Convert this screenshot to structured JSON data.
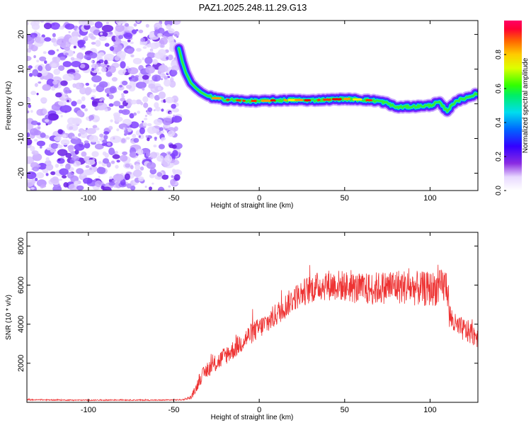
{
  "title": "PAZ1.2025.248.11.29.G13",
  "chart_data": [
    {
      "type": "heatmap",
      "title": "PAZ1.2025.248.11.29.G13",
      "xlabel": "Height of straight line (km)",
      "ylabel": "Frequency (Hz)",
      "xlim": [
        -136,
        128
      ],
      "ylim": [
        -25,
        24
      ],
      "x_ticks": [
        -100,
        -50,
        0,
        50,
        100
      ],
      "y_ticks": [
        -20,
        -10,
        0,
        10,
        20
      ],
      "x_tick_labels": [
        "-100",
        "-50",
        "0",
        "50",
        "100"
      ],
      "y_tick_labels": [
        "-20",
        "-10",
        "0",
        "10",
        "20"
      ],
      "noise_region_x": [
        -136,
        -47
      ],
      "ridge_line": {
        "x": [
          -47,
          -45,
          -43,
          -40,
          -37,
          -34,
          -30,
          -25,
          -20,
          -10,
          0,
          10,
          20,
          30,
          40,
          50,
          60,
          70,
          75,
          80,
          90,
          100,
          105,
          110,
          115,
          120,
          125,
          128
        ],
        "freq": [
          16,
          12,
          9,
          6,
          4.5,
          3.3,
          2.2,
          1.6,
          1.2,
          0.9,
          0.8,
          1.0,
          1.1,
          1.0,
          1.2,
          1.4,
          1.2,
          0.8,
          0.2,
          -1,
          -0.8,
          -0.5,
          0.5,
          -2,
          0.8,
          1.5,
          2.5,
          3.0
        ]
      },
      "colorbar": {
        "label": "Normalized spectral amplitude",
        "range": [
          0.0,
          1.0
        ],
        "ticks": [
          0.0,
          0.2,
          0.4,
          0.6,
          0.8
        ],
        "tick_labels": [
          "0.0",
          "0.2",
          "0.4",
          "0.6",
          "0.8"
        ]
      }
    },
    {
      "type": "line",
      "xlabel": "Height of straight line (km)",
      "ylabel": "SNR (10 * v/v)",
      "xlim": [
        -136,
        128
      ],
      "ylim": [
        0,
        8700
      ],
      "x_ticks": [
        -100,
        -50,
        0,
        50,
        100
      ],
      "y_ticks": [
        2000,
        4000,
        6000,
        8000
      ],
      "x_tick_labels": [
        "-100",
        "-50",
        "0",
        "50",
        "100"
      ],
      "y_tick_labels": [
        "2000",
        "4000",
        "6000",
        "8000"
      ],
      "series": [
        {
          "name": "SNR",
          "color": "#ee3333",
          "x": [
            -136,
            -120,
            -100,
            -80,
            -60,
            -45,
            -40,
            -37,
            -35,
            -30,
            -25,
            -20,
            -15,
            -10,
            -5,
            0,
            5,
            10,
            15,
            20,
            25,
            30,
            35,
            40,
            45,
            50,
            55,
            60,
            65,
            70,
            75,
            80,
            85,
            90,
            95,
            100,
            105,
            108,
            110,
            111,
            115,
            120,
            125,
            128
          ],
          "y": [
            130,
            120,
            110,
            120,
            110,
            130,
            250,
            700,
            1200,
            1700,
            2000,
            2400,
            2700,
            3100,
            3500,
            3800,
            4100,
            4500,
            4900,
            5300,
            5600,
            5800,
            5950,
            6000,
            6000,
            5950,
            5850,
            5800,
            5800,
            5850,
            5900,
            5950,
            5900,
            5850,
            5800,
            5800,
            5850,
            5950,
            6050,
            4500,
            3900,
            3700,
            3500,
            3400
          ],
          "noise": [
            30,
            30,
            30,
            30,
            30,
            30,
            100,
            250,
            350,
            400,
            450,
            500,
            500,
            550,
            550,
            550,
            600,
            600,
            650,
            650,
            700,
            750,
            750,
            800,
            800,
            800,
            800,
            800,
            850,
            850,
            850,
            900,
            900,
            900,
            900,
            900,
            900,
            950,
            950,
            700,
            600,
            600,
            600,
            600
          ]
        }
      ]
    }
  ]
}
